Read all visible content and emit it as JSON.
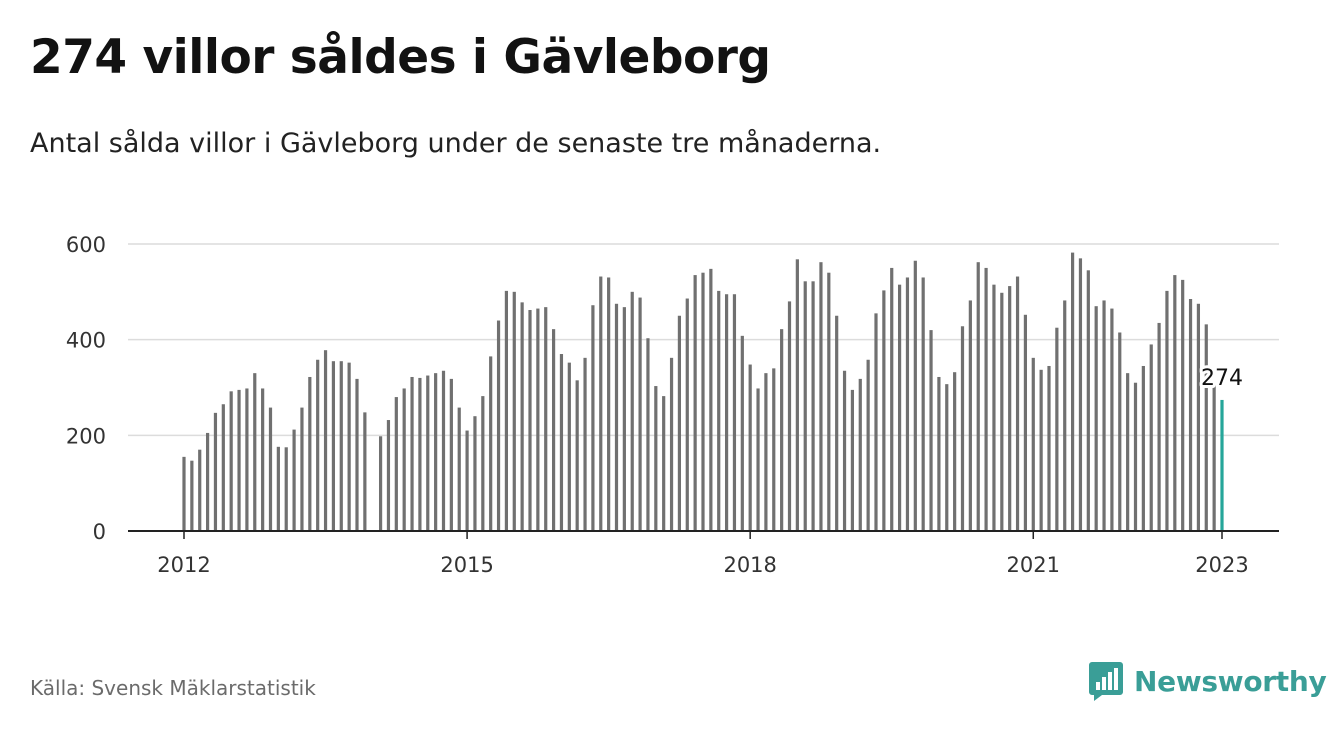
{
  "title": "274 villor såldes i Gävleborg",
  "subtitle": "Antal sålda villor i Gävleborg under de senaste tre månaderna.",
  "source": "Källa: Svensk Mäklarstatistik",
  "brand": {
    "name": "Newsworthy",
    "icon": "newsworthy-logo-icon"
  },
  "colors": {
    "bar": "#707070",
    "highlight": "#26a69a",
    "grid": "#dcdcdc",
    "axis": "#222222",
    "brand": "#3a9e97"
  },
  "chart_data": {
    "type": "bar",
    "ylim": [
      0,
      600
    ],
    "yticks": [
      0,
      200,
      400,
      600
    ],
    "xticks": [
      "2012",
      "2015",
      "2018",
      "2021",
      "2023"
    ],
    "xtick_index": [
      0,
      36,
      72,
      108,
      132
    ],
    "grid": true,
    "annotation": {
      "label": "274",
      "value": 274,
      "index": 132
    },
    "x_start": "2012-01",
    "x_end": "2023-01",
    "values": [
      155,
      147,
      170,
      205,
      247,
      265,
      292,
      295,
      298,
      330,
      298,
      258,
      176,
      175,
      212,
      258,
      322,
      358,
      378,
      355,
      355,
      352,
      318,
      248,
      null,
      198,
      232,
      280,
      298,
      322,
      320,
      325,
      330,
      335,
      318,
      258,
      210,
      240,
      282,
      365,
      440,
      502,
      500,
      478,
      462,
      465,
      468,
      422,
      370,
      352,
      315,
      362,
      472,
      532,
      530,
      475,
      468,
      500,
      488,
      403,
      303,
      282,
      362,
      450,
      486,
      535,
      540,
      548,
      502,
      495,
      495,
      408,
      348,
      298,
      330,
      340,
      422,
      480,
      568,
      522,
      522,
      562,
      540,
      450,
      335,
      295,
      318,
      358,
      455,
      503,
      550,
      515,
      530,
      565,
      530,
      420,
      322,
      307,
      332,
      428,
      482,
      562,
      550,
      515,
      498,
      512,
      532,
      452,
      362,
      337,
      345,
      425,
      482,
      582,
      570,
      545,
      470,
      482,
      465,
      415,
      330,
      310,
      345,
      390,
      435,
      502,
      535,
      525,
      485,
      475,
      432,
      305,
      274
    ]
  }
}
